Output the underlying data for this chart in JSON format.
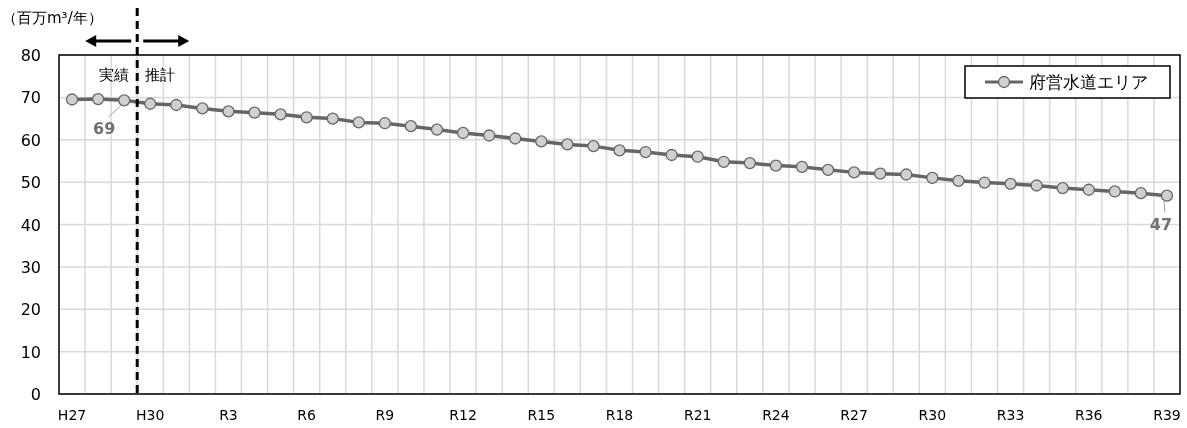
{
  "chart_data": {
    "type": "line",
    "ylabel": "（百万m³/年）",
    "categories": [
      "H27",
      null,
      null,
      "H30",
      null,
      null,
      "R3",
      null,
      null,
      "R6",
      null,
      null,
      "R9",
      null,
      null,
      "R12",
      null,
      null,
      "R15",
      null,
      null,
      "R18",
      null,
      null,
      "R21",
      null,
      null,
      "R24",
      null,
      null,
      "R27",
      null,
      null,
      "R30",
      null,
      null,
      "R33",
      null,
      null,
      "R36",
      null,
      null,
      "R39"
    ],
    "series": [
      {
        "name": "府営水道エリア",
        "color": "#666666",
        "values": [
          69.5,
          69.6,
          69.3,
          68.5,
          68.2,
          67.4,
          66.7,
          66.4,
          66.0,
          65.3,
          65.0,
          64.1,
          63.9,
          63.2,
          62.4,
          61.6,
          61.0,
          60.3,
          59.6,
          58.9,
          58.5,
          57.5,
          57.1,
          56.4,
          56.0,
          54.8,
          54.5,
          53.9,
          53.6,
          52.9,
          52.3,
          52.0,
          51.8,
          51.0,
          50.3,
          49.9,
          49.6,
          49.2,
          48.6,
          48.2,
          47.8,
          47.4,
          46.8
        ],
        "value_labels": [
          null,
          null,
          "69",
          null,
          null,
          null,
          null,
          null,
          null,
          null,
          null,
          null,
          null,
          null,
          null,
          null,
          null,
          null,
          null,
          null,
          null,
          null,
          null,
          null,
          null,
          null,
          null,
          null,
          null,
          null,
          null,
          null,
          null,
          null,
          null,
          null,
          null,
          null,
          null,
          null,
          null,
          null,
          "47"
        ]
      }
    ],
    "ylim": [
      0,
      80
    ],
    "yticks": [
      0,
      10,
      20,
      30,
      40,
      50,
      60,
      70,
      80
    ],
    "grid": true,
    "legend": "top right",
    "marker": "circle",
    "line_style": "solid",
    "annotations": [
      "実績",
      "推計"
    ]
  }
}
